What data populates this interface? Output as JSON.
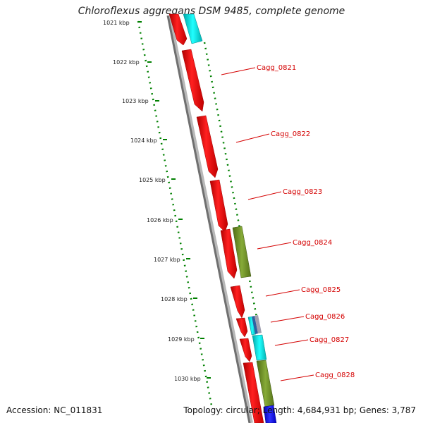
{
  "title": "Chloroflexus aggregans DSM 9485, complete genome",
  "footer": {
    "accession": "Accession: NC_011831",
    "summary": "Topology: circular; Length: 4,684,931 bp; Genes: 3,787"
  },
  "scale_labels": [
    "1021 kbp",
    "1022 kbp",
    "1023 kbp",
    "1024 kbp",
    "1025 kbp",
    "1026 kbp",
    "1027 kbp",
    "1028 kbp",
    "1029 kbp",
    "1030 kbp"
  ],
  "gene_labels": [
    "Cagg_0821",
    "Cagg_0822",
    "Cagg_0823",
    "Cagg_0824",
    "Cagg_0825",
    "Cagg_0826",
    "Cagg_0827",
    "Cagg_0828"
  ],
  "colors": {
    "cds": "#ff0000",
    "category_cyan": "#00e0e0",
    "category_olive": "#6b8e23",
    "category_blue": "#0000ff",
    "backbone": "#808080",
    "ticks": "#008000",
    "label": "#d40000"
  }
}
